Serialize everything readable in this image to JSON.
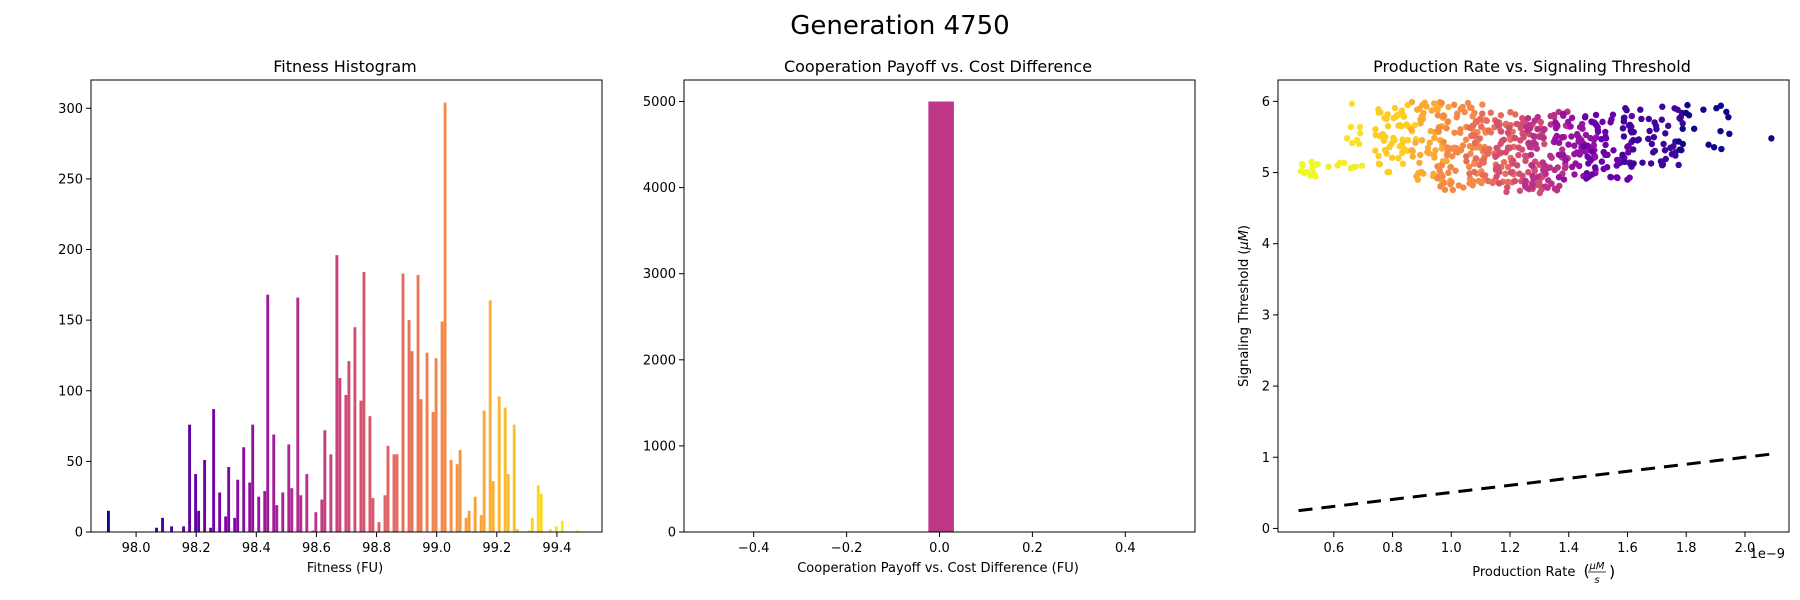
{
  "figure": {
    "title": "Generation 4750"
  },
  "chart_data": [
    {
      "type": "bar",
      "title": "Fitness Histogram",
      "xlabel": "Fitness (FU)",
      "ylabel": "",
      "xlim": [
        97.85,
        99.55
      ],
      "ylim": [
        0,
        320
      ],
      "xticks": [
        98.0,
        98.2,
        98.4,
        98.6,
        98.8,
        99.0,
        99.2,
        99.4
      ],
      "xtick_labels": [
        "98.0",
        "98.2",
        "98.4",
        "98.6",
        "98.8",
        "99.0",
        "99.2",
        "99.4"
      ],
      "yticks": [
        0,
        50,
        100,
        150,
        200,
        250,
        300
      ],
      "ytick_labels": [
        "0",
        "50",
        "100",
        "150",
        "200",
        "250",
        "300"
      ],
      "colormap": "plasma",
      "bin_width": 0.0136,
      "bins": [
        {
          "x": 97.91,
          "count": 15
        },
        {
          "x": 98.07,
          "count": 3
        },
        {
          "x": 98.09,
          "count": 10
        },
        {
          "x": 98.12,
          "count": 4
        },
        {
          "x": 98.16,
          "count": 4
        },
        {
          "x": 98.18,
          "count": 76
        },
        {
          "x": 98.2,
          "count": 41
        },
        {
          "x": 98.21,
          "count": 15
        },
        {
          "x": 98.23,
          "count": 51
        },
        {
          "x": 98.25,
          "count": 3
        },
        {
          "x": 98.26,
          "count": 87
        },
        {
          "x": 98.28,
          "count": 28
        },
        {
          "x": 98.3,
          "count": 11
        },
        {
          "x": 98.31,
          "count": 46
        },
        {
          "x": 98.33,
          "count": 10
        },
        {
          "x": 98.34,
          "count": 37
        },
        {
          "x": 98.36,
          "count": 60
        },
        {
          "x": 98.38,
          "count": 35
        },
        {
          "x": 98.39,
          "count": 76
        },
        {
          "x": 98.41,
          "count": 25
        },
        {
          "x": 98.43,
          "count": 29
        },
        {
          "x": 98.44,
          "count": 168
        },
        {
          "x": 98.46,
          "count": 69
        },
        {
          "x": 98.47,
          "count": 19
        },
        {
          "x": 98.49,
          "count": 28
        },
        {
          "x": 98.51,
          "count": 62
        },
        {
          "x": 98.52,
          "count": 31
        },
        {
          "x": 98.54,
          "count": 166
        },
        {
          "x": 98.55,
          "count": 26
        },
        {
          "x": 98.57,
          "count": 41
        },
        {
          "x": 98.59,
          "count": 1
        },
        {
          "x": 98.6,
          "count": 14
        },
        {
          "x": 98.62,
          "count": 23
        },
        {
          "x": 98.63,
          "count": 72
        },
        {
          "x": 98.65,
          "count": 55
        },
        {
          "x": 98.67,
          "count": 196
        },
        {
          "x": 98.68,
          "count": 109
        },
        {
          "x": 98.7,
          "count": 97
        },
        {
          "x": 98.71,
          "count": 121
        },
        {
          "x": 98.73,
          "count": 145
        },
        {
          "x": 98.75,
          "count": 93
        },
        {
          "x": 98.76,
          "count": 184
        },
        {
          "x": 98.78,
          "count": 82
        },
        {
          "x": 98.79,
          "count": 24
        },
        {
          "x": 98.81,
          "count": 7
        },
        {
          "x": 98.83,
          "count": 26
        },
        {
          "x": 98.84,
          "count": 61
        },
        {
          "x": 98.86,
          "count": 55
        },
        {
          "x": 98.87,
          "count": 55
        },
        {
          "x": 98.89,
          "count": 183
        },
        {
          "x": 98.91,
          "count": 150
        },
        {
          "x": 98.92,
          "count": 128
        },
        {
          "x": 98.94,
          "count": 182
        },
        {
          "x": 98.95,
          "count": 94
        },
        {
          "x": 98.97,
          "count": 127
        },
        {
          "x": 98.99,
          "count": 85
        },
        {
          "x": 99.0,
          "count": 123
        },
        {
          "x": 99.02,
          "count": 149
        },
        {
          "x": 99.03,
          "count": 304
        },
        {
          "x": 99.05,
          "count": 51
        },
        {
          "x": 99.07,
          "count": 48
        },
        {
          "x": 99.08,
          "count": 58
        },
        {
          "x": 99.1,
          "count": 10
        },
        {
          "x": 99.11,
          "count": 15
        },
        {
          "x": 99.13,
          "count": 25
        },
        {
          "x": 99.15,
          "count": 12
        },
        {
          "x": 99.16,
          "count": 86
        },
        {
          "x": 99.18,
          "count": 164
        },
        {
          "x": 99.19,
          "count": 36
        },
        {
          "x": 99.21,
          "count": 96
        },
        {
          "x": 99.23,
          "count": 88
        },
        {
          "x": 99.24,
          "count": 41
        },
        {
          "x": 99.26,
          "count": 76
        },
        {
          "x": 99.27,
          "count": 2
        },
        {
          "x": 99.31,
          "count": 1
        },
        {
          "x": 99.32,
          "count": 10
        },
        {
          "x": 99.34,
          "count": 33
        },
        {
          "x": 99.35,
          "count": 27
        },
        {
          "x": 99.38,
          "count": 2
        },
        {
          "x": 99.4,
          "count": 4
        },
        {
          "x": 99.42,
          "count": 8
        },
        {
          "x": 99.47,
          "count": 1
        }
      ]
    },
    {
      "type": "bar",
      "title": "Cooperation Payoff vs. Cost Difference",
      "xlabel": "Cooperation Payoff vs. Cost Difference (FU)",
      "ylabel": "",
      "xlim": [
        -0.55,
        0.55
      ],
      "ylim": [
        0,
        5250
      ],
      "xticks": [
        -0.4,
        -0.2,
        0.0,
        0.2,
        0.4
      ],
      "xtick_labels": [
        "−0.4",
        "−0.2",
        "0.0",
        "0.2",
        "0.4"
      ],
      "yticks": [
        0,
        1000,
        2000,
        3000,
        4000,
        5000
      ],
      "ytick_labels": [
        "0",
        "1000",
        "2000",
        "3000",
        "4000",
        "5000"
      ],
      "bar_color": "#bd3786",
      "bins": [
        {
          "x0": -0.024,
          "x1": 0.031,
          "count": 5000
        }
      ]
    },
    {
      "type": "scatter",
      "title": "Production Rate vs. Signaling Threshold",
      "xlabel": "Production Rate",
      "xlabel_unit_num": "μM",
      "xlabel_unit_den": "s",
      "ylabel": "Signaling Threshold (",
      "ylabel_unit": "μM",
      "ylabel_close": ")",
      "x_offset_label": "1e−9",
      "xlim": [
        0.41,
        2.15
      ],
      "ylim": [
        -0.05,
        6.3
      ],
      "xticks": [
        0.6,
        0.8,
        1.0,
        1.2,
        1.4,
        1.6,
        1.8,
        2.0
      ],
      "xtick_labels": [
        "0.6",
        "0.8",
        "1.0",
        "1.2",
        "1.4",
        "1.6",
        "1.8",
        "2.0"
      ],
      "yticks": [
        0,
        1,
        2,
        3,
        4,
        5,
        6
      ],
      "ytick_labels": [
        "0",
        "1",
        "2",
        "3",
        "4",
        "5",
        "6"
      ],
      "colormap": "plasma",
      "trend_line": {
        "x": [
          0.48,
          2.1
        ],
        "y": [
          0.25,
          1.05
        ],
        "style": "dashed",
        "color": "#000000"
      },
      "clusters": [
        {
          "x": [
            0.48,
            0.55
          ],
          "y": [
            4.9,
            5.15
          ],
          "n": 16,
          "color": "#f0f921"
        },
        {
          "x": [
            0.56,
            0.7
          ],
          "y": [
            5.05,
            5.15
          ],
          "n": 8,
          "color": "#f3ef27"
        },
        {
          "x": [
            0.62,
            0.72
          ],
          "y": [
            5.4,
            6.0
          ],
          "n": 8,
          "color": "#f8e02b"
        },
        {
          "x": [
            0.74,
            0.88
          ],
          "y": [
            5.0,
            5.95
          ],
          "n": 55,
          "color": "#fccd25"
        },
        {
          "x": [
            0.86,
            1.0
          ],
          "y": [
            4.85,
            6.0
          ],
          "n": 60,
          "color": "#fbaa35"
        },
        {
          "x": [
            0.95,
            1.12
          ],
          "y": [
            4.75,
            6.0
          ],
          "n": 90,
          "color": "#f48a48"
        },
        {
          "x": [
            1.05,
            1.22
          ],
          "y": [
            4.85,
            5.85
          ],
          "n": 70,
          "color": "#e66c5c"
        },
        {
          "x": [
            1.15,
            1.32
          ],
          "y": [
            4.7,
            5.8
          ],
          "n": 80,
          "color": "#d14e72"
        },
        {
          "x": [
            1.25,
            1.4
          ],
          "y": [
            4.75,
            5.9
          ],
          "n": 70,
          "color": "#b7318a"
        },
        {
          "x": [
            1.35,
            1.5
          ],
          "y": [
            4.9,
            5.85
          ],
          "n": 60,
          "color": "#9511a1"
        },
        {
          "x": [
            1.45,
            1.62
          ],
          "y": [
            4.85,
            5.85
          ],
          "n": 60,
          "color": "#6a00a8"
        },
        {
          "x": [
            1.58,
            1.8
          ],
          "y": [
            5.1,
            5.95
          ],
          "n": 60,
          "color": "#3e049c"
        },
        {
          "x": [
            1.75,
            1.95
          ],
          "y": [
            5.3,
            5.95
          ],
          "n": 18,
          "color": "#0d0887"
        },
        {
          "x": [
            2.09,
            2.09
          ],
          "y": [
            5.48,
            5.48
          ],
          "n": 1,
          "color": "#0d0887"
        }
      ]
    }
  ]
}
